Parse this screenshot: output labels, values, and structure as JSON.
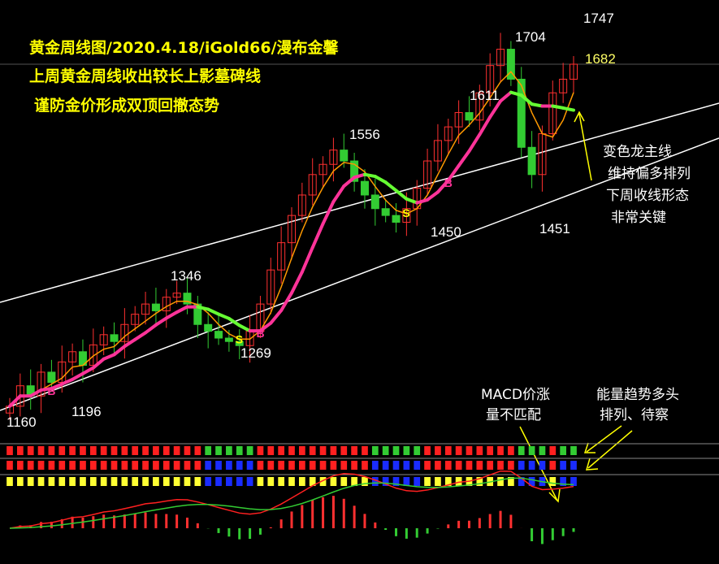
{
  "title_lines": [
    "黄金周线图/2020.4.18/iGold66/漫布金馨",
    "上周黄金周线收出较长上影墓碑线",
    "谨防金价形成双顶回撤态势"
  ],
  "annotations": {
    "dragon_lines": [
      "变色龙主线",
      "维持偏多排列",
      "下周收线形态",
      "非常关键"
    ],
    "macd_lines": [
      "MACD价涨",
      "量不匹配"
    ],
    "energy_lines": [
      "能量趋势多头",
      "排列、待察"
    ]
  },
  "colors": {
    "title": "#ffff00",
    "annotation": "#ffffff",
    "price_label": "#ffffff",
    "current_price": "#ffff66",
    "up_candle": "#ff3030",
    "down_candle": "#33cc33",
    "dragon_up": "#ff3399",
    "dragon_down": "#66ff33",
    "fast_ma": "#ff9900",
    "channel": "#ffffff",
    "macd_dif": "#ff2020",
    "macd_dea": "#33cc33",
    "arrow": "#ffff00"
  },
  "chart_data": {
    "type": "candlestick",
    "timeframe": "weekly",
    "price_labels": [
      "1160",
      "1196",
      "1346",
      "1269",
      "1556",
      "1450",
      "1611",
      "1451",
      "1704",
      "1747",
      "1682"
    ],
    "current_price": 1682,
    "key_points": [
      {
        "label": "1160",
        "value": 1160
      },
      {
        "label": "1196",
        "value": 1196
      },
      {
        "label": "1346",
        "value": 1346
      },
      {
        "label": "1269",
        "value": 1269
      },
      {
        "label": "1556",
        "value": 1556
      },
      {
        "label": "1450",
        "value": 1450
      },
      {
        "label": "1611",
        "value": 1611
      },
      {
        "label": "1451",
        "value": 1451
      },
      {
        "label": "1704",
        "value": 1704
      },
      {
        "label": "1747",
        "value": 1747
      }
    ],
    "signals": [
      {
        "label": "B",
        "color": "#ff3399"
      },
      {
        "label": "S",
        "color": "#ffff00"
      },
      {
        "label": "B",
        "color": "#ff3399"
      },
      {
        "label": "S",
        "color": "#ffff00"
      },
      {
        "label": "B",
        "color": "#ff3399"
      }
    ],
    "closes": [
      1180,
      1210,
      1195,
      1230,
      1215,
      1245,
      1260,
      1240,
      1270,
      1285,
      1275,
      1300,
      1315,
      1330,
      1320,
      1340,
      1346,
      1330,
      1300,
      1290,
      1280,
      1275,
      1269,
      1290,
      1330,
      1380,
      1420,
      1460,
      1490,
      1520,
      1535,
      1556,
      1540,
      1510,
      1490,
      1470,
      1460,
      1450,
      1470,
      1500,
      1540,
      1570,
      1590,
      1611,
      1600,
      1640,
      1680,
      1704,
      1660,
      1560,
      1520,
      1580,
      1640,
      1660,
      1682
    ],
    "overlays": [
      "dragon main line",
      "fast moving average",
      "ascending channel"
    ],
    "indicators": [
      "signal bars",
      "MACD"
    ]
  }
}
